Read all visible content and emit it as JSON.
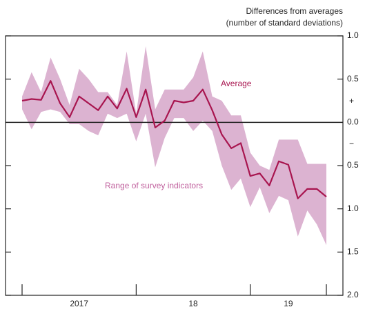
{
  "chart_data": {
    "type": "line",
    "title_lines": [
      "Differences from averages",
      "(number of standard deviations)"
    ],
    "categories": [
      null,
      null,
      null,
      null,
      null,
      null,
      null,
      null,
      null,
      null,
      null,
      null,
      null,
      null,
      null,
      null,
      null,
      null,
      null,
      null,
      null,
      null,
      null,
      null,
      null,
      null,
      null,
      null,
      null,
      null,
      null,
      null,
      null
    ],
    "year_labels": [
      "2017",
      "18",
      "19"
    ],
    "series": [
      {
        "name": "Average",
        "color": "#a8154f",
        "values": [
          0.25,
          0.27,
          0.26,
          0.48,
          0.22,
          0.06,
          0.3,
          0.22,
          0.14,
          0.3,
          0.16,
          0.39,
          0.06,
          0.38,
          -0.06,
          0.02,
          0.25,
          0.23,
          0.25,
          0.38,
          0.14,
          -0.14,
          -0.3,
          -0.24,
          -0.62,
          -0.59,
          -0.73,
          -0.45,
          -0.49,
          -0.88,
          -0.77,
          -0.77,
          -0.86
        ]
      }
    ],
    "range": {
      "name": "Range of survey indicators",
      "color": "#dcb3d1",
      "label_color": "#c0609d",
      "upper": [
        0.3,
        0.58,
        0.35,
        0.75,
        0.5,
        0.2,
        0.62,
        0.5,
        0.35,
        0.35,
        0.2,
        0.82,
        0.1,
        0.88,
        0.15,
        0.38,
        0.38,
        0.38,
        0.52,
        0.82,
        0.3,
        0.25,
        0.08,
        0.08,
        -0.35,
        -0.5,
        -0.55,
        -0.2,
        -0.2,
        -0.2,
        -0.48,
        -0.48,
        -0.48
      ],
      "lower": [
        0.15,
        -0.08,
        0.12,
        0.15,
        0.12,
        -0.02,
        -0.02,
        -0.1,
        -0.15,
        0.1,
        0.05,
        0.1,
        -0.22,
        0.1,
        -0.52,
        -0.18,
        0.05,
        0.05,
        -0.1,
        0.02,
        -0.1,
        -0.5,
        -0.78,
        -0.65,
        -0.98,
        -0.75,
        -1.05,
        -0.85,
        -0.9,
        -1.32,
        -1.02,
        -1.18,
        -1.42
      ]
    },
    "ylim": [
      -2,
      1
    ],
    "yticks": [
      {
        "value": 1,
        "label": "1.0"
      },
      {
        "value": 0.5,
        "label": "0.5"
      },
      {
        "value": 0,
        "label": "0.0"
      },
      {
        "value": -0.5,
        "label": "0.5"
      },
      {
        "value": -1,
        "label": "1.0"
      },
      {
        "value": -1.5,
        "label": "1.5"
      },
      {
        "value": -2,
        "label": "2.0"
      }
    ],
    "plus_label": "+",
    "minus_label": "−"
  }
}
